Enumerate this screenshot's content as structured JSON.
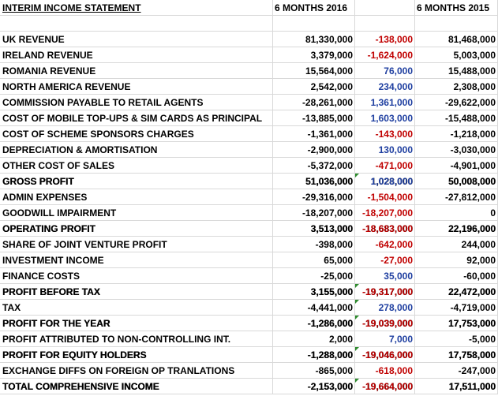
{
  "header": {
    "title": "INTERIM INCOME STATEMENT",
    "col1": "6 MONTHS 2016",
    "col2": "",
    "col3": "6 MONTHS 2015"
  },
  "rows": [
    {
      "label": "UK REVENUE",
      "y2016": "81,330,000",
      "change": "-138,000",
      "y2015": "81,468,000",
      "dir": "neg",
      "total": false,
      "tri": false
    },
    {
      "label": "IRELAND REVENUE",
      "y2016": "3,379,000",
      "change": "-1,624,000",
      "y2015": "5,003,000",
      "dir": "neg",
      "total": false,
      "tri": false
    },
    {
      "label": "ROMANIA REVENUE",
      "y2016": "15,564,000",
      "change": "76,000",
      "y2015": "15,488,000",
      "dir": "pos",
      "total": false,
      "tri": false
    },
    {
      "label": "NORTH AMERICA REVENUE",
      "y2016": "2,542,000",
      "change": "234,000",
      "y2015": "2,308,000",
      "dir": "pos",
      "total": false,
      "tri": false
    },
    {
      "label": "COMMISSION PAYABLE TO RETAIL AGENTS",
      "y2016": "-28,261,000",
      "change": "1,361,000",
      "y2015": "-29,622,000",
      "dir": "pos",
      "total": false,
      "tri": false
    },
    {
      "label": "COST OF MOBILE TOP-UPS & SIM CARDS AS PRINCIPAL",
      "y2016": "-13,885,000",
      "change": "1,603,000",
      "y2015": "-15,488,000",
      "dir": "pos",
      "total": false,
      "tri": false
    },
    {
      "label": "COST OF SCHEME SPONSORS CHARGES",
      "y2016": "-1,361,000",
      "change": "-143,000",
      "y2015": "-1,218,000",
      "dir": "neg",
      "total": false,
      "tri": false
    },
    {
      "label": "DEPRECIATION & AMORTISATION",
      "y2016": "-2,900,000",
      "change": "130,000",
      "y2015": "-3,030,000",
      "dir": "pos",
      "total": false,
      "tri": false
    },
    {
      "label": "OTHER COST OF SALES",
      "y2016": "-5,372,000",
      "change": "-471,000",
      "y2015": "-4,901,000",
      "dir": "neg",
      "total": false,
      "tri": false
    },
    {
      "label": "GROSS PROFIT",
      "y2016": "51,036,000",
      "change": "1,028,000",
      "y2015": "50,008,000",
      "dir": "pos",
      "total": true,
      "tri": true
    },
    {
      "label": "ADMIN EXPENSES",
      "y2016": "-29,316,000",
      "change": "-1,504,000",
      "y2015": "-27,812,000",
      "dir": "neg",
      "total": false,
      "tri": false
    },
    {
      "label": "GOODWILL IMPAIRMENT",
      "y2016": "-18,207,000",
      "change": "-18,207,000",
      "y2015": "0",
      "dir": "neg",
      "total": false,
      "tri": false
    },
    {
      "label": "OPERATING PROFIT",
      "y2016": "3,513,000",
      "change": "-18,683,000",
      "y2015": "22,196,000",
      "dir": "neg",
      "total": true,
      "tri": false
    },
    {
      "label": "SHARE OF JOINT VENTURE PROFIT",
      "y2016": "-398,000",
      "change": "-642,000",
      "y2015": "244,000",
      "dir": "neg",
      "total": false,
      "tri": false
    },
    {
      "label": "INVESTMENT INCOME",
      "y2016": "65,000",
      "change": "-27,000",
      "y2015": "92,000",
      "dir": "neg",
      "total": false,
      "tri": false
    },
    {
      "label": "FINANCE COSTS",
      "y2016": "-25,000",
      "change": "35,000",
      "y2015": "-60,000",
      "dir": "pos",
      "total": false,
      "tri": false
    },
    {
      "label": "PROFIT BEFORE TAX",
      "y2016": "3,155,000",
      "change": "-19,317,000",
      "y2015": "22,472,000",
      "dir": "neg",
      "total": true,
      "tri": true
    },
    {
      "label": "TAX",
      "y2016": "-4,441,000",
      "change": "278,000",
      "y2015": "-4,719,000",
      "dir": "pos",
      "total": false,
      "tri": true
    },
    {
      "label": "PROFIT FOR THE YEAR",
      "y2016": "-1,286,000",
      "change": "-19,039,000",
      "y2015": "17,753,000",
      "dir": "neg",
      "total": true,
      "tri": true
    },
    {
      "label": "PROFIT ATTRIBUTED TO NON-CONTROLLING INT.",
      "y2016": "2,000",
      "change": "7,000",
      "y2015": "-5,000",
      "dir": "pos",
      "total": false,
      "tri": false
    },
    {
      "label": "PROFIT FOR EQUITY HOLDERS",
      "y2016": "-1,288,000",
      "change": "-19,046,000",
      "y2015": "17,758,000",
      "dir": "neg",
      "total": true,
      "tri": true
    },
    {
      "label": "EXCHANGE DIFFS ON FOREIGN OP TRANLATIONS",
      "y2016": "-865,000",
      "change": "-618,000",
      "y2015": "-247,000",
      "dir": "neg",
      "total": false,
      "tri": false
    },
    {
      "label": "TOTAL COMPREHENSIVE INCOME",
      "y2016": "-2,153,000",
      "change": "-19,664,000",
      "y2015": "17,511,000",
      "dir": "neg",
      "total": true,
      "tri": true
    }
  ]
}
